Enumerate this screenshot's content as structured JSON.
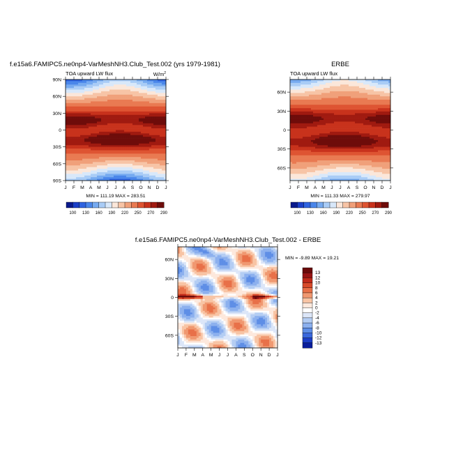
{
  "chart_data": [
    {
      "type": "heatmap",
      "panel_title": "f.e15a6.FAMIPC5.ne0np4-VarMeshNH3.Club_Test.002 (yrs 1979-1981)",
      "left_label": "TOA upward LW flux",
      "units": "W/m",
      "units_sup": "2",
      "x_ticks": [
        "J",
        "F",
        "M",
        "A",
        "M",
        "J",
        "J",
        "A",
        "S",
        "O",
        "N",
        "D",
        "J"
      ],
      "y_ticks": [
        "90N",
        "60N",
        "30N",
        "0",
        "30S",
        "60S",
        "90S"
      ],
      "ylim": [
        -90,
        90
      ],
      "stats": "MIN = 111.19 MAX = 283.51",
      "colorbar_labels": [
        "100",
        "130",
        "160",
        "190",
        "220",
        "250",
        "270",
        "290"
      ],
      "colorbar_colors": [
        "#0a1a8c",
        "#1b3fc7",
        "#2f63e0",
        "#4a86ea",
        "#76aaf0",
        "#a9ccf6",
        "#d8e8fa",
        "#fbe7da",
        "#f7c4a6",
        "#f0a07a",
        "#e97a52",
        "#de5432",
        "#c8321c",
        "#a01a10",
        "#6e0c0a"
      ],
      "field": "olr_model"
    },
    {
      "type": "heatmap",
      "panel_title": "ERBE",
      "left_label": "TOA upward LW flux",
      "x_ticks": [
        "J",
        "F",
        "M",
        "A",
        "M",
        "J",
        "J",
        "A",
        "S",
        "O",
        "N",
        "D",
        "J"
      ],
      "y_ticks": [
        "60N",
        "30N",
        "0",
        "30S",
        "60S"
      ],
      "ylim": [
        -80,
        80
      ],
      "stats": "MIN = 111.33 MAX = 279.97",
      "colorbar_labels": [
        "100",
        "130",
        "160",
        "190",
        "220",
        "250",
        "270",
        "290"
      ],
      "field": "olr_obs"
    },
    {
      "type": "heatmap",
      "panel_title": "f.e15a6.FAMIPC5.ne0np4-VarMeshNH3.Club_Test.002 - ERBE",
      "x_ticks": [
        "J",
        "F",
        "M",
        "A",
        "M",
        "J",
        "J",
        "A",
        "S",
        "O",
        "N",
        "D",
        "J"
      ],
      "y_ticks": [
        "60N",
        "30N",
        "0",
        "30S",
        "60S"
      ],
      "ylim": [
        -80,
        80
      ],
      "stats": "MIN = -9.89 MAX = 19.21",
      "colorbar_labels": [
        "13",
        "12",
        "10",
        "8",
        "6",
        "4",
        "2",
        "0",
        "-2",
        "-4",
        "-6",
        "-8",
        "-10",
        "-12",
        "-13"
      ],
      "colorbar_colors": [
        "#6b0a0a",
        "#981414",
        "#c02a1a",
        "#d84a2a",
        "#e87048",
        "#f09870",
        "#f8c4a4",
        "#fde8dc",
        "#ffffff",
        "#dce6f8",
        "#b4cdf3",
        "#8cb0ee",
        "#5e8ee6",
        "#3a68dc",
        "#1c3ec6",
        "#0a1e9c"
      ],
      "field": "olr_diff"
    }
  ]
}
